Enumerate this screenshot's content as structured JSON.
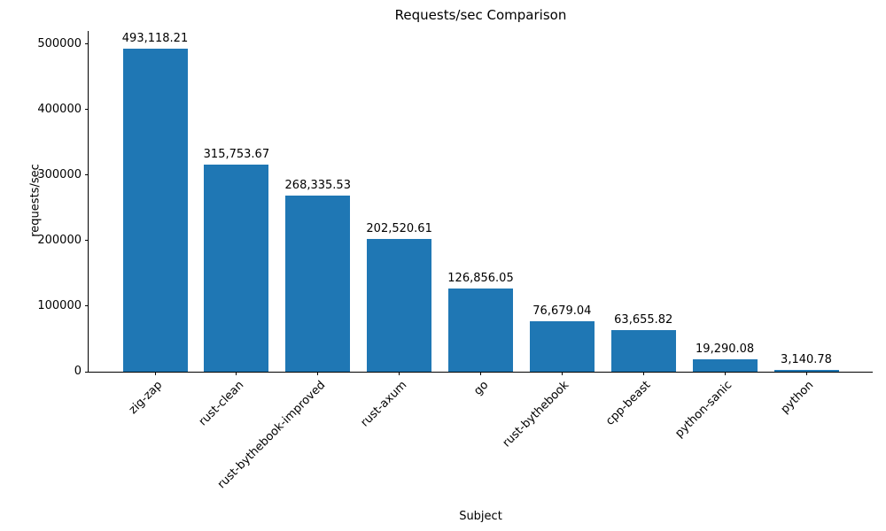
{
  "chart_data": {
    "type": "bar",
    "title": "Requests/sec Comparison",
    "xlabel": "Subject",
    "ylabel": "requests/sec",
    "categories": [
      "zig-zap",
      "rust-clean",
      "rust-bythebook-improved",
      "rust-axum",
      "go",
      "rust-bythebook",
      "cpp-beast",
      "python-sanic",
      "python"
    ],
    "values": [
      493118.21,
      315753.67,
      268335.53,
      202520.61,
      126856.05,
      76679.04,
      63655.82,
      19290.08,
      3140.78
    ],
    "value_labels": [
      "493,118.21",
      "315,753.67",
      "268,335.53",
      "202,520.61",
      "126,856.05",
      "76,679.04",
      "63,655.82",
      "19,290.08",
      "3,140.78"
    ],
    "ylim": [
      0,
      520000
    ],
    "yticks": [
      0,
      100000,
      200000,
      300000,
      400000,
      500000
    ],
    "ytick_labels": [
      "0",
      "100000",
      "200000",
      "300000",
      "400000",
      "500000"
    ],
    "bar_color": "#1f77b4",
    "grid": false,
    "legend_position": "none"
  }
}
